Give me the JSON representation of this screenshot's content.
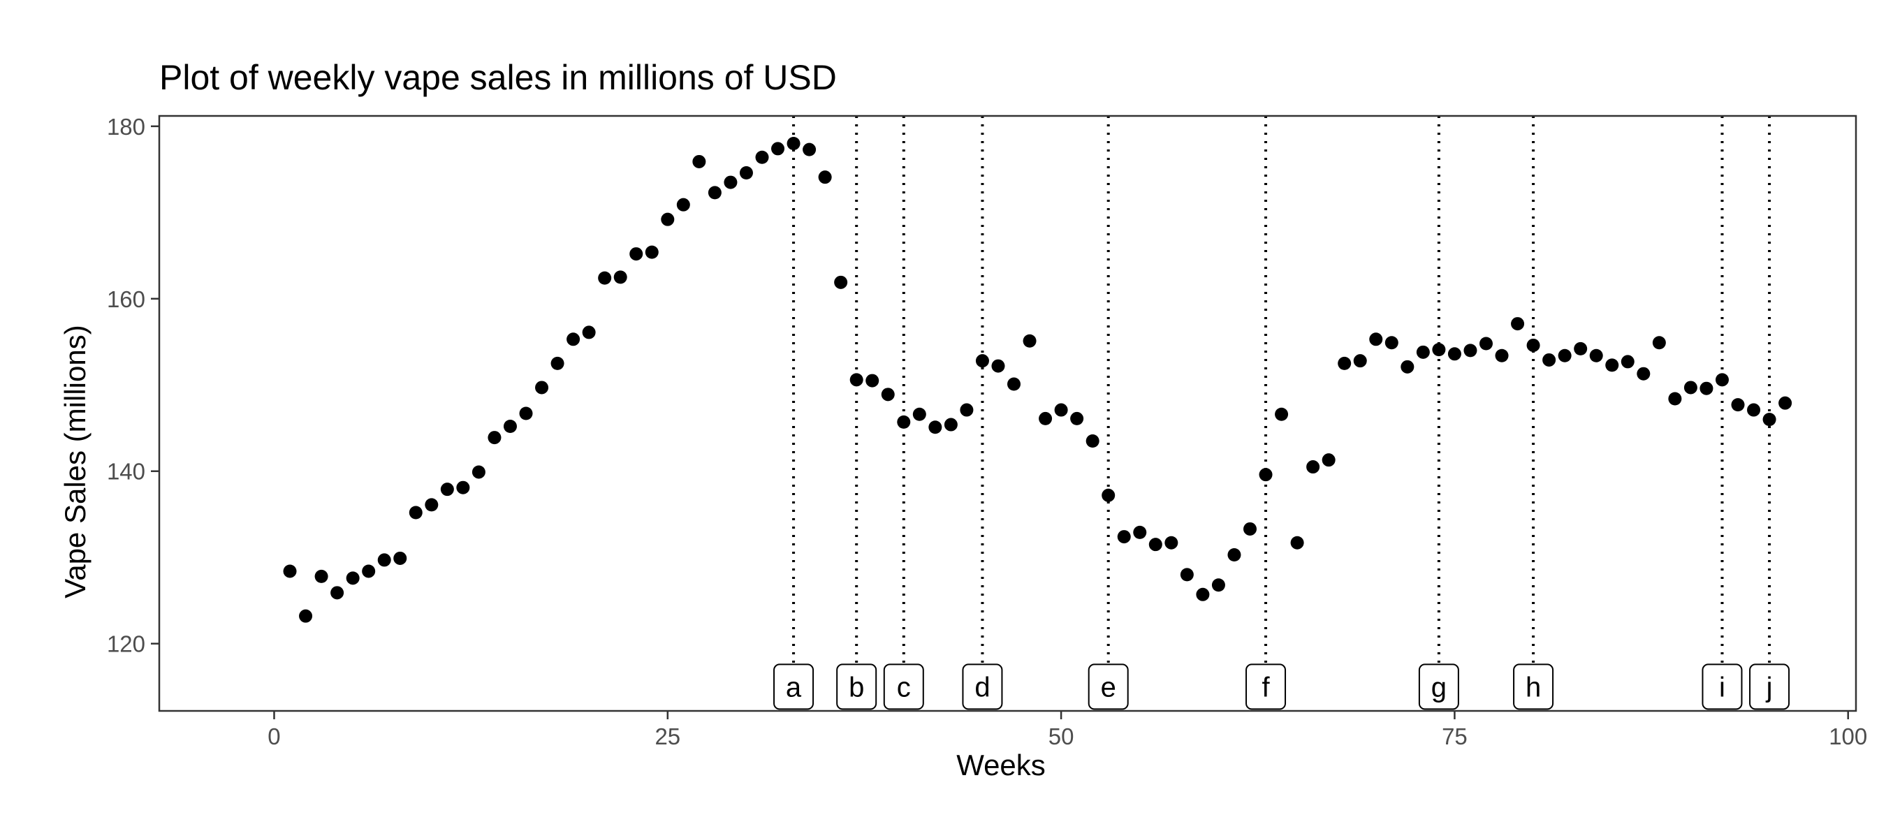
{
  "chart_data": {
    "type": "scatter",
    "title": "Plot of weekly vape sales in millions of USD",
    "xlabel": "Weeks",
    "ylabel": "Vape Sales (millions)",
    "xlim": [
      -7.3,
      100.5
    ],
    "ylim": [
      112.2,
      181.2
    ],
    "xticks": [
      0,
      25,
      50,
      75,
      100
    ],
    "yticks": [
      120,
      140,
      160,
      180
    ],
    "grid": false,
    "legend": "none",
    "point_color": "#000000",
    "x": [
      1,
      2,
      3,
      4,
      5,
      6,
      7,
      8,
      9,
      10,
      11,
      12,
      13,
      14,
      15,
      16,
      17,
      18,
      19,
      20,
      21,
      22,
      23,
      24,
      25,
      26,
      27,
      28,
      29,
      30,
      31,
      32,
      33,
      34,
      35,
      36,
      37,
      38,
      39,
      40,
      41,
      42,
      43,
      44,
      45,
      46,
      47,
      48,
      49,
      50,
      51,
      52,
      53,
      54,
      55,
      56,
      57,
      58,
      59,
      60,
      61,
      62,
      63,
      64,
      65,
      66,
      67,
      68,
      69,
      70,
      71,
      72,
      73,
      74,
      75,
      76,
      77,
      78,
      79,
      80,
      81,
      82,
      83,
      84,
      85,
      86,
      87,
      88,
      89,
      90,
      91,
      92,
      93,
      94,
      95,
      96
    ],
    "y": [
      128.4,
      123.2,
      127.8,
      125.9,
      127.6,
      128.4,
      129.7,
      129.9,
      135.2,
      136.1,
      137.9,
      138.1,
      139.9,
      143.9,
      145.2,
      146.7,
      149.7,
      152.5,
      155.3,
      156.1,
      162.4,
      162.5,
      165.2,
      165.4,
      169.2,
      170.9,
      175.9,
      172.3,
      173.5,
      174.6,
      176.4,
      177.4,
      178.0,
      177.3,
      174.1,
      161.9,
      150.6,
      150.5,
      148.9,
      145.7,
      146.6,
      145.1,
      145.4,
      147.1,
      152.8,
      152.2,
      150.1,
      155.1,
      146.1,
      147.1,
      146.1,
      143.5,
      137.2,
      132.4,
      132.9,
      131.5,
      131.7,
      128.0,
      125.7,
      126.8,
      130.3,
      133.3,
      139.6,
      146.6,
      131.7,
      140.5,
      141.3,
      152.5,
      152.8,
      155.3,
      154.9,
      152.1,
      153.8,
      154.1,
      153.6,
      154.0,
      154.8,
      153.4,
      157.1,
      154.6,
      152.9,
      153.4,
      154.2,
      153.4,
      152.3,
      152.7,
      151.3,
      154.9,
      148.4,
      149.7,
      149.6,
      150.6,
      147.7,
      147.1,
      146.0,
      147.9
    ],
    "vlines": [
      {
        "x": 33,
        "label": "a"
      },
      {
        "x": 37,
        "label": "b"
      },
      {
        "x": 40,
        "label": "c"
      },
      {
        "x": 45,
        "label": "d"
      },
      {
        "x": 53,
        "label": "e"
      },
      {
        "x": 63,
        "label": "f"
      },
      {
        "x": 74,
        "label": "g"
      },
      {
        "x": 80,
        "label": "h"
      },
      {
        "x": 92,
        "label": "i"
      },
      {
        "x": 95,
        "label": "j"
      }
    ],
    "annotation_y": 115
  }
}
